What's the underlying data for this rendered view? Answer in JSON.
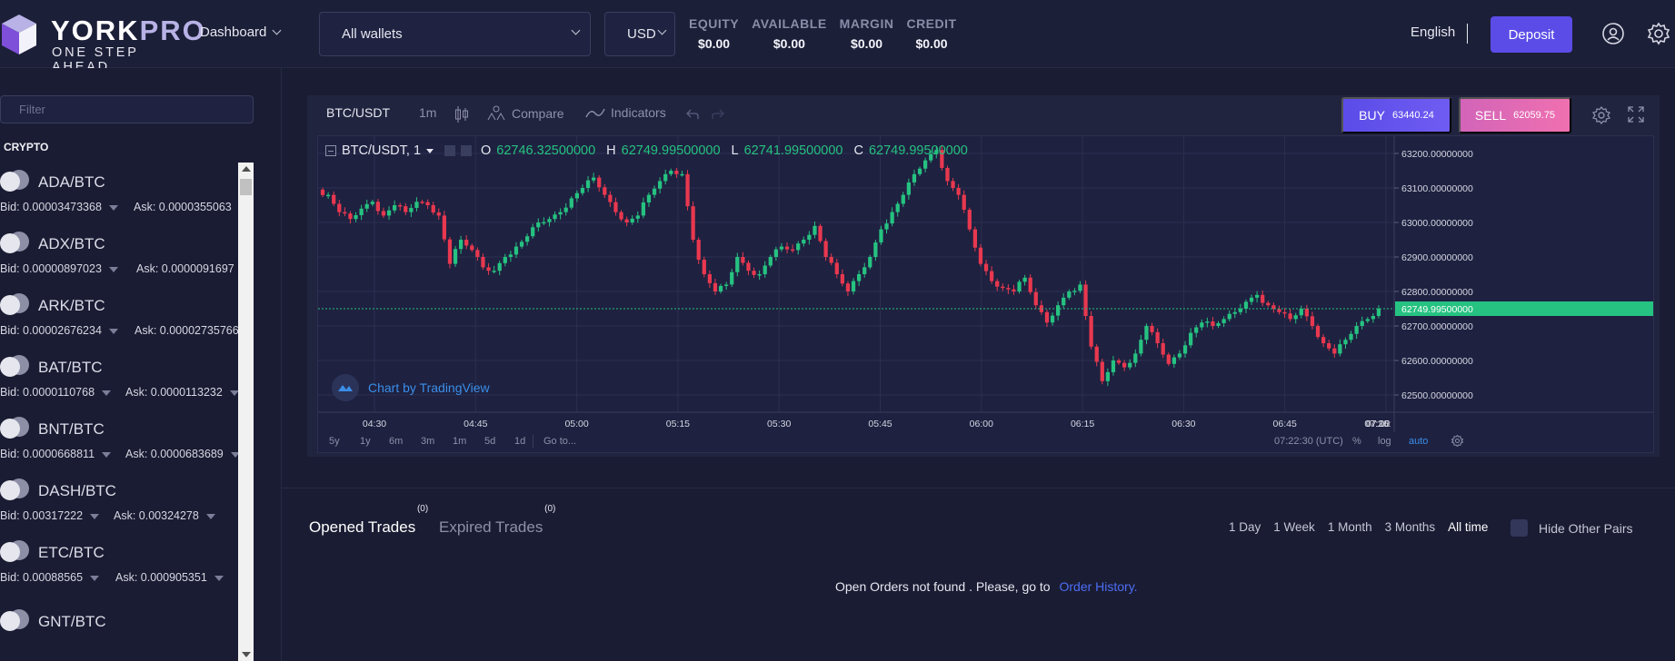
{
  "header": {
    "brand_main": "YORK",
    "brand_accent": "PRO",
    "tagline": "ONE STEP AHEAD",
    "dashboard_label": "Dashboard",
    "wallet_selected": "All wallets",
    "currency_selected": "USD",
    "stats": [
      {
        "label": "EQUITY",
        "value": "$0.00"
      },
      {
        "label": "AVAILABLE",
        "value": "$0.00"
      },
      {
        "label": "MARGIN",
        "value": "$0.00"
      },
      {
        "label": "CREDIT",
        "value": "$0.00"
      }
    ],
    "language": "English",
    "deposit_label": "Deposit",
    "icons": [
      "user-icon",
      "settings-icon"
    ]
  },
  "sidebar": {
    "filter_placeholder": "Filter",
    "section_title": "CRYPTO",
    "pairs": [
      {
        "name": "ADA/BTC",
        "bid": "Bid: 0.00003473368",
        "ask": "Ask: 0.0000355063"
      },
      {
        "name": "ADX/BTC",
        "bid": "Bid: 0.00000897023",
        "ask": "Ask: 0.0000091697"
      },
      {
        "name": "ARK/BTC",
        "bid": "Bid: 0.00002676234",
        "ask": "Ask: 0.00002735766"
      },
      {
        "name": "BAT/BTC",
        "bid": "Bid: 0.0000110768",
        "ask": "Ask: 0.0000113232"
      },
      {
        "name": "BNT/BTC",
        "bid": "Bid: 0.0000668811",
        "ask": "Ask: 0.0000683689"
      },
      {
        "name": "DASH/BTC",
        "bid": "Bid: 0.00317222",
        "ask": "Ask: 0.00324278"
      },
      {
        "name": "ETC/BTC",
        "bid": "Bid: 0.00088565",
        "ask": "Ask: 0.000905351"
      },
      {
        "name": "GNT/BTC",
        "bid": "",
        "ask": ""
      }
    ]
  },
  "chart_toolbar": {
    "symbol": "BTC/USDT",
    "interval": "1m",
    "compare_label": "Compare",
    "indicators_label": "Indicators",
    "buy_label": "BUY",
    "buy_price": "63440.24",
    "sell_label": "SELL",
    "sell_price": "62059.75"
  },
  "chart_legend": {
    "symbol": "BTC/USDT, 1",
    "o_label": "O",
    "o_value": "62746.32500000",
    "h_label": "H",
    "h_value": "62749.99500000",
    "l_label": "L",
    "l_value": "62741.99500000",
    "c_label": "C",
    "c_value": "62749.99500000",
    "credit": "Chart by TradingView"
  },
  "chart_bottom": {
    "ranges": [
      "5y",
      "1y",
      "6m",
      "3m",
      "1m",
      "5d",
      "1d"
    ],
    "goto": "Go to...",
    "clock": "07:22:30 (UTC)",
    "percent": "%",
    "log": "log",
    "auto": "auto"
  },
  "chart_data": {
    "type": "candlestick",
    "symbol": "BTC/USDT",
    "x_ticks": [
      "04:30",
      "04:45",
      "05:00",
      "05:15",
      "05:30",
      "05:45",
      "06:00",
      "06:15",
      "06:30",
      "06:45",
      "07:00",
      "07:15",
      "07:26:"
    ],
    "y_ticks": [
      "63200.00000000",
      "63100.00000000",
      "63000.00000000",
      "62900.00000000",
      "62800.00000000",
      "62700.00000000",
      "62600.00000000",
      "62500.00000000"
    ],
    "ylim": [
      62450,
      63250
    ],
    "last_price_label": "62749.99500000",
    "last_price": 62749.995,
    "close_path": [
      63080,
      63030,
      63010,
      63040,
      63060,
      63020,
      63050,
      63030,
      63060,
      63050,
      63020,
      62880,
      62950,
      62920,
      62870,
      62860,
      62900,
      62930,
      62960,
      63000,
      63010,
      63030,
      63070,
      63100,
      63130,
      63080,
      63030,
      63000,
      63020,
      63080,
      63120,
      63150,
      63140,
      62950,
      62850,
      62800,
      62820,
      62900,
      62860,
      62850,
      62900,
      62930,
      62920,
      62950,
      62990,
      62900,
      62850,
      62800,
      62850,
      62900,
      62980,
      63030,
      63080,
      63140,
      63180,
      63210,
      63120,
      63080,
      62980,
      62880,
      62830,
      62810,
      62800,
      62840,
      62760,
      62710,
      62760,
      62800,
      62820,
      62640,
      62540,
      62600,
      62580,
      62620,
      62700,
      62650,
      62590,
      62620,
      62680,
      62710,
      62700,
      62720,
      62740,
      62770,
      62790,
      62760,
      62740,
      62720,
      62750,
      62700,
      62650,
      62620,
      62660,
      62700,
      62720,
      62750
    ]
  },
  "trades": {
    "tabs": [
      {
        "label": "Opened Trades",
        "count": "(0)"
      },
      {
        "label": "Expired Trades",
        "count": "(0)"
      }
    ],
    "periods": [
      "1 Day",
      "1 Week",
      "1 Month",
      "3 Months",
      "All time"
    ],
    "active_period": "All time",
    "hide_pairs_label": "Hide Other Pairs",
    "empty_message": "Open Orders not found . Please, go to",
    "empty_link": "Order History."
  }
}
